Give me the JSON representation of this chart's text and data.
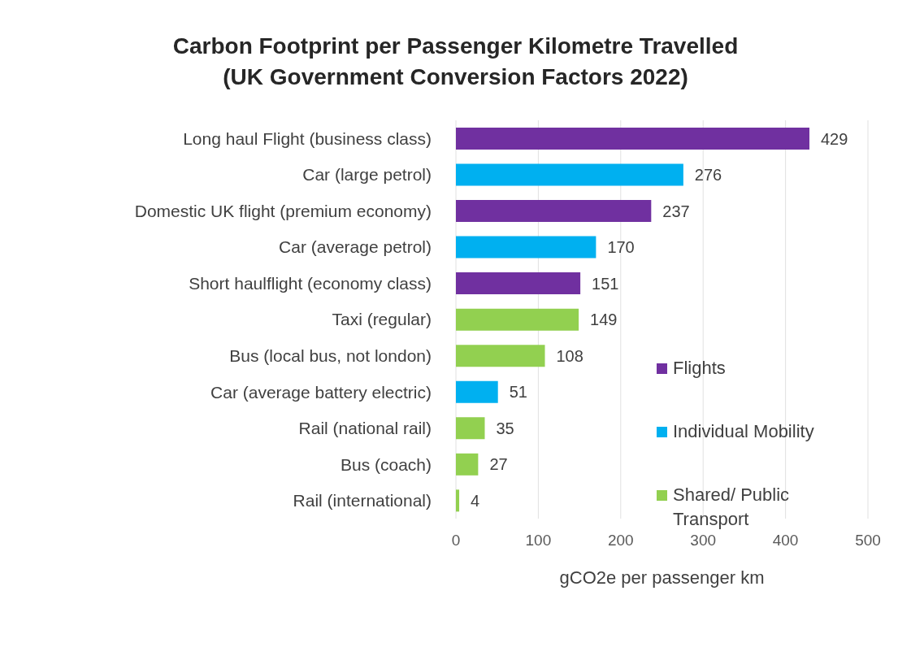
{
  "chart_data": {
    "type": "bar",
    "orientation": "horizontal",
    "stacked": true,
    "title": "Carbon Footprint per Passenger Kilometre Travelled\n(UK Government Conversion Factors 2022)",
    "xlabel": "gCO2e per passenger km",
    "categories": [
      "Long haul Flight (business class)",
      "Car (large petrol)",
      "Domestic UK flight (premium economy)",
      "Car (average petrol)",
      "Short haulflight (economy class)",
      "Taxi (regular)",
      "Bus (local bus, not london)",
      "Car (average battery electric)",
      "Rail (national rail)",
      "Bus (coach)",
      "Rail (international)"
    ],
    "series": [
      {
        "name": "Flights",
        "color": "#7030a0",
        "values": [
          429,
          null,
          237,
          null,
          151,
          null,
          null,
          null,
          null,
          null,
          null
        ]
      },
      {
        "name": "Individual Mobility",
        "color": "#00b0f0",
        "values": [
          null,
          276,
          null,
          170,
          null,
          null,
          null,
          51,
          null,
          null,
          null
        ]
      },
      {
        "name": "Shared/ Public Transport",
        "color": "#92d050",
        "values": [
          null,
          null,
          null,
          null,
          null,
          149,
          108,
          null,
          35,
          27,
          4
        ]
      }
    ],
    "xlim": [
      0,
      500
    ],
    "xticks": [
      0,
      100,
      200,
      300,
      400,
      500
    ],
    "grid": "x",
    "legend": "right",
    "data_labels": true
  }
}
